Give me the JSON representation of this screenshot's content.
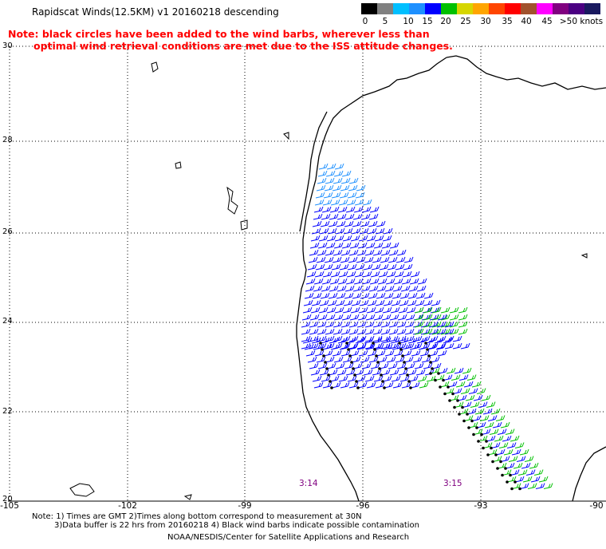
{
  "header": {
    "title": "Rapidscat Winds(12.5KM) v1 20160218 descending",
    "note_line1": "Note: black circles have been added to the wind barbs, wherever less than",
    "note_line2": "optimal wind retrieval conditions are met due to the ISS attitude changes."
  },
  "legend": {
    "units": ">50 knots",
    "labels": [
      "0",
      "5",
      "10",
      "15",
      "20",
      "25",
      "30",
      "35",
      "40",
      "45",
      ">50 knots"
    ],
    "colors": [
      "#000000",
      "#808080",
      "#00bfff",
      "#1e90ff",
      "#0000ff",
      "#00c000",
      "#d6d600",
      "#ffa500",
      "#ff4500",
      "#ff0000",
      "#a0522d",
      "#ff00ff",
      "#800080",
      "#4b0082",
      "#1a1a60"
    ]
  },
  "map": {
    "lat_labels": [
      "30",
      "28",
      "26",
      "24",
      "22",
      "20"
    ],
    "lon_labels": [
      "-105",
      "-102",
      "-99",
      "-96",
      "-93",
      "-90"
    ],
    "pass_times": [
      "3:14",
      "3:15"
    ],
    "colors": {
      "coast": "#000000",
      "grid": "#000000",
      "barb_low": "#1e90ff",
      "barb_mid": "#0000ff",
      "barb_high": "#00c000"
    }
  },
  "footer": {
    "line1": "Note: 1) Times are GMT 2)Times along bottom correspond to measurement at 30N",
    "line2": "3)Data buffer is 22 hrs from 20160218 4) Black wind barbs indicate possible contamination",
    "line3": "NOAA/NESDIS/Center for Satellite Applications and Research"
  }
}
